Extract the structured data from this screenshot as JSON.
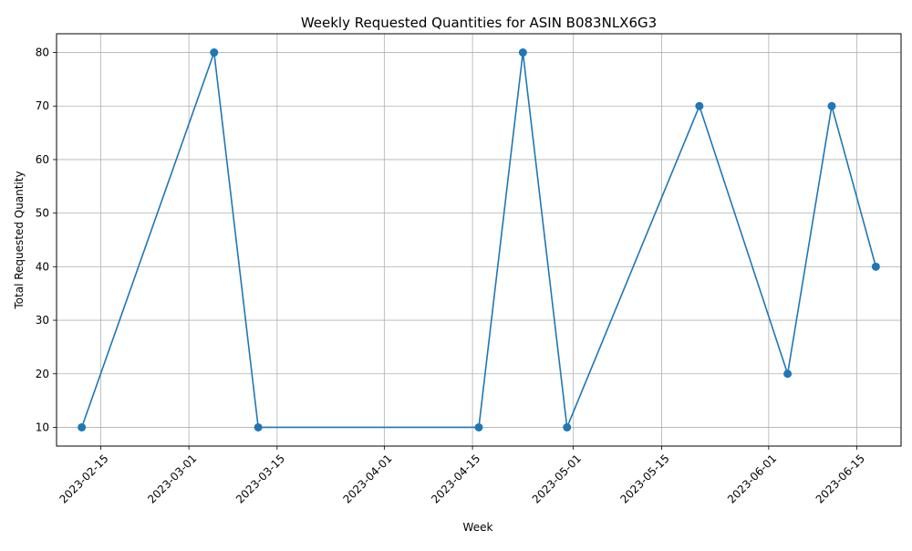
{
  "chart_data": {
    "type": "line",
    "title": "Weekly Requested Quantities for ASIN B083NLX6G3",
    "xlabel": "Week",
    "ylabel": "Total Requested Quantity",
    "x": [
      "2023-02-12",
      "2023-03-05",
      "2023-03-12",
      "2023-04-16",
      "2023-04-23",
      "2023-04-30",
      "2023-05-21",
      "2023-06-04",
      "2023-06-11",
      "2023-06-18"
    ],
    "series": [
      {
        "values": [
          10,
          80,
          10,
          10,
          80,
          10,
          70,
          20,
          70,
          40
        ]
      }
    ],
    "xlim": [
      "2023-02-08",
      "2023-06-22"
    ],
    "ylim": [
      6.5,
      83.5
    ],
    "xticks": [
      "2023-02-15",
      "2023-03-01",
      "2023-03-15",
      "2023-04-01",
      "2023-04-15",
      "2023-05-01",
      "2023-05-15",
      "2023-06-01",
      "2023-06-15"
    ],
    "yticks": [
      10,
      20,
      30,
      40,
      50,
      60,
      70,
      80
    ],
    "grid": true,
    "marker": "circle",
    "color": "#1f77b4"
  }
}
